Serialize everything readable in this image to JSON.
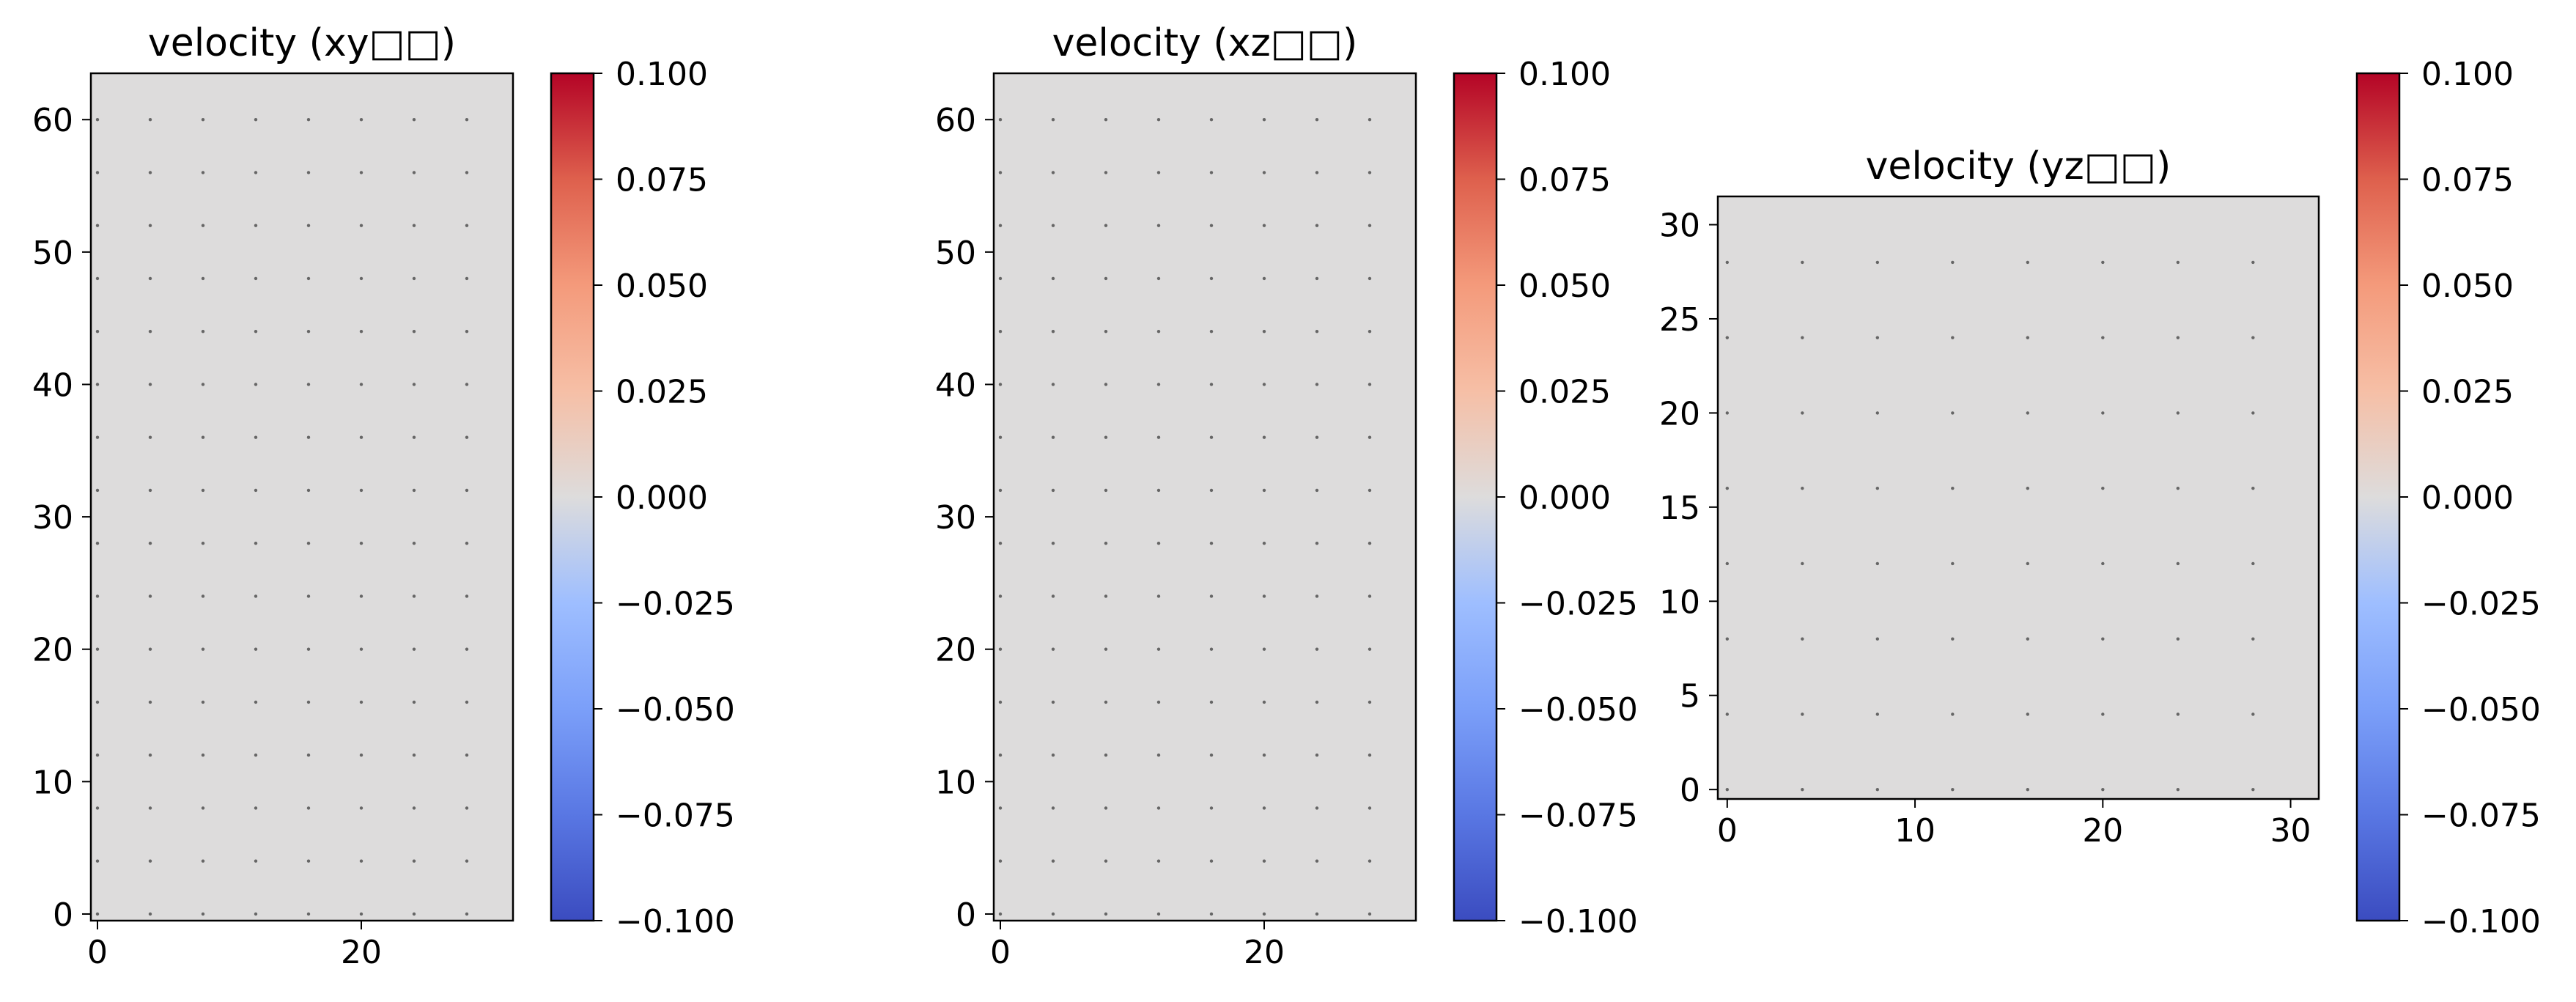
{
  "chart_data": [
    {
      "type": "heatmap",
      "title": "velocity (xy□□)",
      "field_value": 0.0,
      "xlim": [
        -0.5,
        31.5
      ],
      "ylim": [
        -0.5,
        63.5
      ],
      "xticks": [
        0,
        20
      ],
      "yticks": [
        0,
        10,
        20,
        30,
        40,
        50,
        60
      ],
      "quiver_x": [
        0,
        4,
        8,
        12,
        16,
        20,
        24,
        28
      ],
      "quiver_y": [
        0,
        4,
        8,
        12,
        16,
        20,
        24,
        28,
        32,
        36,
        40,
        44,
        48,
        52,
        56,
        60
      ],
      "colorbar": {
        "colormap": "coolwarm",
        "range": [
          -0.1,
          0.1
        ],
        "ticks": [
          "0.100",
          "0.075",
          "0.050",
          "0.025",
          "0.000",
          "−0.025",
          "−0.050",
          "−0.075",
          "−0.100"
        ]
      }
    },
    {
      "type": "heatmap",
      "title": "velocity (xz□□)",
      "field_value": 0.0,
      "xlim": [
        -0.5,
        31.5
      ],
      "ylim": [
        -0.5,
        63.5
      ],
      "xticks": [
        0,
        20
      ],
      "yticks": [
        0,
        10,
        20,
        30,
        40,
        50,
        60
      ],
      "quiver_x": [
        0,
        4,
        8,
        12,
        16,
        20,
        24,
        28
      ],
      "quiver_y": [
        0,
        4,
        8,
        12,
        16,
        20,
        24,
        28,
        32,
        36,
        40,
        44,
        48,
        52,
        56,
        60
      ],
      "colorbar": {
        "colormap": "coolwarm",
        "range": [
          -0.1,
          0.1
        ],
        "ticks": [
          "0.100",
          "0.075",
          "0.050",
          "0.025",
          "0.000",
          "−0.025",
          "−0.050",
          "−0.075",
          "−0.100"
        ]
      }
    },
    {
      "type": "heatmap",
      "title": "velocity (yz□□)",
      "field_value": 0.0,
      "xlim": [
        -0.5,
        31.5
      ],
      "ylim": [
        -0.5,
        31.5
      ],
      "xticks": [
        0,
        10,
        20,
        30
      ],
      "yticks": [
        0,
        5,
        10,
        15,
        20,
        25,
        30
      ],
      "quiver_x": [
        0,
        4,
        8,
        12,
        16,
        20,
        24,
        28
      ],
      "quiver_y": [
        0,
        4,
        8,
        12,
        16,
        20,
        24,
        28
      ],
      "colorbar": {
        "colormap": "coolwarm",
        "range": [
          -0.1,
          0.1
        ],
        "ticks": [
          "0.100",
          "0.075",
          "0.050",
          "0.025",
          "0.000",
          "−0.025",
          "−0.050",
          "−0.075",
          "−0.100"
        ]
      }
    }
  ]
}
